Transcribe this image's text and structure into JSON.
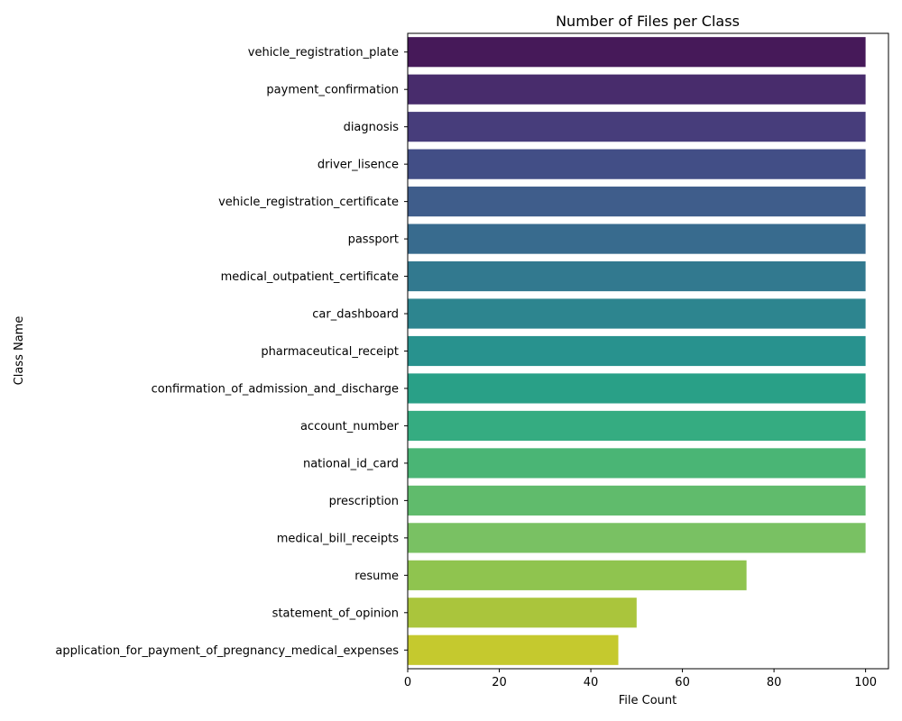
{
  "chart_data": {
    "type": "bar",
    "orientation": "horizontal",
    "title": "Number of Files per Class",
    "xlabel": "File Count",
    "ylabel": "Class Name",
    "xlim": [
      0,
      105
    ],
    "xticks": [
      0,
      20,
      40,
      60,
      80,
      100
    ],
    "grid": false,
    "categories": [
      "vehicle_registration_plate",
      "payment_confirmation",
      "diagnosis",
      "driver_lisence",
      "vehicle_registration_certificate",
      "passport",
      "medical_outpatient_certificate",
      "car_dashboard",
      "pharmaceutical_receipt",
      "confirmation_of_admission_and_discharge",
      "account_number",
      "national_id_card",
      "prescription",
      "medical_bill_receipts",
      "resume",
      "statement_of_opinion",
      "application_for_payment_of_pregnancy_medical_expenses"
    ],
    "values": [
      100,
      100,
      100,
      100,
      100,
      100,
      100,
      100,
      100,
      100,
      100,
      100,
      100,
      100,
      74,
      50,
      46
    ],
    "colors": [
      "#461959",
      "#482C6C",
      "#473D7B",
      "#424E86",
      "#3F5D8B",
      "#386B8E",
      "#32798F",
      "#2D858F",
      "#28928E",
      "#29A087",
      "#35AC81",
      "#4AB575",
      "#60BB6C",
      "#79C163",
      "#8FC44F",
      "#AAC53C",
      "#C5C92E"
    ]
  }
}
